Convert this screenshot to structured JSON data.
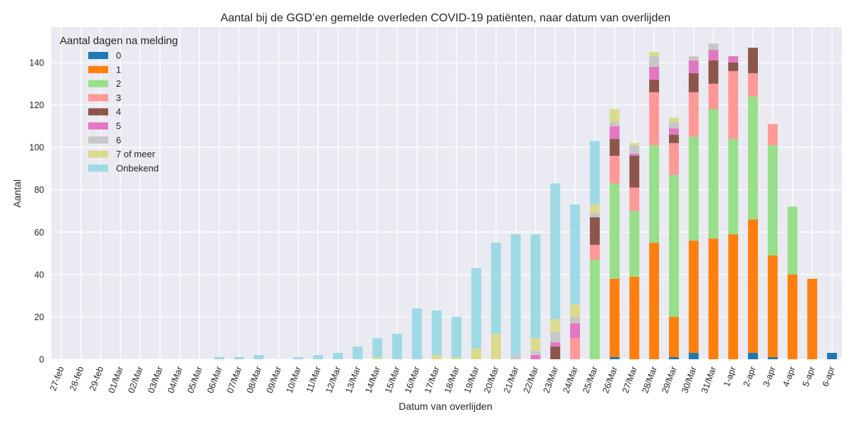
{
  "chart_data": {
    "type": "bar",
    "stacked": true,
    "title": "Aantal bij de GGD’en gemelde overleden COVID-19 patiënten, naar datum van overlijden",
    "xlabel": "Datum van overlijden",
    "ylabel": "Aantal",
    "ylim": [
      0,
      157
    ],
    "yticks": [
      0,
      20,
      40,
      60,
      80,
      100,
      120,
      140
    ],
    "grid": true,
    "legend": {
      "title": "Aantal dagen na melding",
      "position": "top-left"
    },
    "categories": [
      "27-feb",
      "28-feb",
      "29-feb",
      "01/Mar",
      "02/Mar",
      "03/Mar",
      "04/Mar",
      "05/Mar",
      "06/Mar",
      "07/Mar",
      "08/Mar",
      "09/Mar",
      "10/Mar",
      "11/Mar",
      "12/Mar",
      "13/Mar",
      "14/Mar",
      "15/Mar",
      "16/Mar",
      "17/Mar",
      "18/Mar",
      "19/Mar",
      "20/Mar",
      "21/Mar",
      "22/Mar",
      "23/Mar",
      "24/Mar",
      "25/Mar",
      "26/Mar",
      "27/Mar",
      "28/Mar",
      "29/Mar",
      "30/Mar",
      "31/Mar",
      "1-apr",
      "2-apr",
      "3-apr",
      "4-apr",
      "5-apr",
      "6-apr"
    ],
    "series": [
      {
        "name": "0",
        "color": "#1f77b4",
        "values": [
          0,
          0,
          0,
          0,
          0,
          0,
          0,
          0,
          0,
          0,
          0,
          0,
          0,
          0,
          0,
          0,
          0,
          0,
          0,
          0,
          0,
          0,
          0,
          0,
          0,
          0,
          0,
          0,
          1,
          0,
          0,
          1,
          3,
          0,
          0,
          3,
          1,
          0,
          0,
          3
        ]
      },
      {
        "name": "1",
        "color": "#ff7f0e",
        "values": [
          0,
          0,
          0,
          0,
          0,
          0,
          0,
          0,
          0,
          0,
          0,
          0,
          0,
          0,
          0,
          0,
          0,
          0,
          0,
          0,
          0,
          0,
          0,
          0,
          0,
          0,
          0,
          0,
          37,
          39,
          55,
          19,
          53,
          57,
          59,
          63,
          48,
          40,
          38,
          0
        ]
      },
      {
        "name": "2",
        "color": "#98df8a",
        "values": [
          0,
          0,
          0,
          0,
          0,
          0,
          0,
          0,
          0,
          0,
          0,
          0,
          0,
          0,
          0,
          0,
          0,
          0,
          0,
          0,
          0,
          0,
          0,
          0,
          0,
          0,
          0,
          47,
          45,
          31,
          46,
          67,
          49,
          61,
          45,
          58,
          52,
          32,
          0,
          0
        ]
      },
      {
        "name": "3",
        "color": "#ff9896",
        "values": [
          0,
          0,
          0,
          0,
          0,
          0,
          0,
          0,
          0,
          0,
          0,
          0,
          0,
          0,
          0,
          0,
          0,
          0,
          0,
          0,
          0,
          0,
          0,
          0,
          0,
          0,
          10,
          7,
          13,
          11,
          25,
          15,
          21,
          12,
          32,
          11,
          10,
          0,
          0,
          0
        ]
      },
      {
        "name": "4",
        "color": "#8c564b",
        "values": [
          0,
          0,
          0,
          0,
          0,
          0,
          0,
          0,
          0,
          0,
          0,
          0,
          0,
          0,
          0,
          0,
          0,
          0,
          0,
          0,
          0,
          0,
          0,
          0,
          0,
          6,
          0,
          13,
          8,
          15,
          6,
          4,
          9,
          11,
          4,
          12,
          0,
          0,
          0,
          0
        ]
      },
      {
        "name": "5",
        "color": "#e377c2",
        "values": [
          0,
          0,
          0,
          0,
          0,
          0,
          0,
          0,
          0,
          0,
          0,
          0,
          0,
          0,
          0,
          0,
          0,
          0,
          0,
          0,
          0,
          0,
          0,
          0,
          2,
          2,
          7,
          0,
          6,
          1,
          6,
          3,
          6,
          5,
          3,
          0,
          0,
          0,
          0,
          0
        ]
      },
      {
        "name": "6",
        "color": "#c7c7c7",
        "values": [
          0,
          0,
          0,
          0,
          0,
          0,
          0,
          0,
          0,
          0,
          0,
          0,
          0,
          0,
          0,
          0,
          0,
          0,
          0,
          0,
          0,
          0,
          0,
          2,
          2,
          5,
          3,
          2,
          2,
          4,
          5,
          3,
          2,
          3,
          0,
          0,
          0,
          0,
          0,
          0
        ]
      },
      {
        "name": "7 of meer",
        "color": "#dbdb8d",
        "values": [
          0,
          0,
          0,
          0,
          0,
          0,
          0,
          0,
          0,
          0,
          0,
          0,
          0,
          0,
          0,
          0,
          1,
          0,
          0,
          2,
          1,
          5,
          12,
          0,
          6,
          6,
          6,
          4,
          6,
          1,
          2,
          2,
          0,
          0,
          0,
          0,
          0,
          0,
          0,
          0
        ]
      },
      {
        "name": "Onbekend",
        "color": "#9edae5",
        "values": [
          0,
          0,
          0,
          0,
          0,
          0,
          0,
          0,
          1,
          1,
          2,
          0,
          1,
          2,
          3,
          6,
          9,
          12,
          24,
          21,
          19,
          38,
          43,
          57,
          49,
          64,
          47,
          30,
          0,
          0,
          0,
          0,
          0,
          0,
          0,
          0,
          0,
          0,
          0,
          0
        ]
      }
    ]
  }
}
